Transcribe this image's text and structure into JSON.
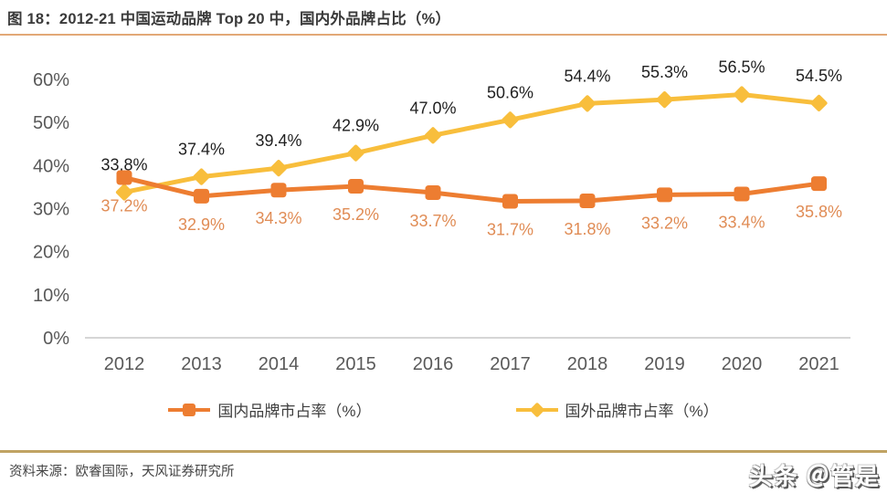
{
  "header": {
    "title": "图 18：2012-21 中国运动品牌 Top 20 中，国内外品牌占比（%）"
  },
  "footer": {
    "source": "资料来源：欧睿国际，天风证券研究所",
    "watermark": "头条 ＠管是"
  },
  "colors": {
    "domestic_series": "#ED7D31",
    "foreign_series": "#F8BE3C",
    "domestic_label_text": "#E08C55",
    "foreign_label_text": "#1f1f1f",
    "axis_line": "#c8c8c8",
    "tick_text": "#595959",
    "title_divider": "#e2a877",
    "footer_divider": "#c0a363",
    "title_text": "#3a3a3a"
  },
  "chart_data": {
    "type": "line",
    "title": "图 18：2012-21 中国运动品牌 Top 20 中，国内外品牌占比（%）",
    "categories": [
      "2012",
      "2013",
      "2014",
      "2015",
      "2016",
      "2017",
      "2018",
      "2019",
      "2020",
      "2021"
    ],
    "series": [
      {
        "id": "foreign",
        "name": "国外品牌市占率（%）",
        "values": [
          33.8,
          37.4,
          39.4,
          42.9,
          47.0,
          50.6,
          54.4,
          55.3,
          56.5,
          54.5
        ],
        "labels": [
          "33.8%",
          "37.4%",
          "39.4%",
          "42.9%",
          "47.0%",
          "50.6%",
          "54.4%",
          "55.3%",
          "56.5%",
          "54.5%"
        ],
        "color": "#F8BE3C",
        "label_color": "#1f1f1f",
        "marker": "diamond",
        "label_position": "above"
      },
      {
        "id": "domestic",
        "name": "国内品牌市占率（%）",
        "values": [
          37.2,
          32.9,
          34.3,
          35.2,
          33.7,
          31.7,
          31.8,
          33.2,
          33.4,
          35.8
        ],
        "labels": [
          "37.2%",
          "32.9%",
          "34.3%",
          "35.2%",
          "33.7%",
          "31.7%",
          "31.8%",
          "33.2%",
          "33.4%",
          "35.8%"
        ],
        "color": "#ED7D31",
        "label_color": "#E08C55",
        "marker": "square",
        "label_position": "below"
      }
    ],
    "xlabel": "",
    "ylabel": "",
    "ylim": [
      0,
      60
    ],
    "ytick_values": [
      0,
      10,
      20,
      30,
      40,
      50,
      60
    ],
    "ytick_labels": [
      "0%",
      "10%",
      "20%",
      "30%",
      "40%",
      "50%",
      "60%"
    ],
    "grid": false,
    "legend_position": "bottom",
    "legend_order": [
      "domestic",
      "foreign"
    ]
  }
}
